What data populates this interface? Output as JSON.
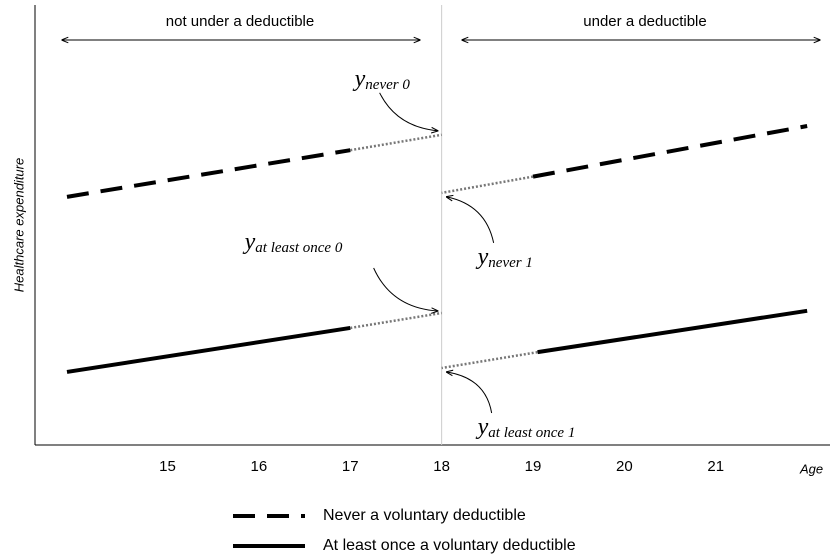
{
  "chart_data": {
    "type": "line",
    "xlabel": "Age",
    "ylabel": "Healthcare expenditure",
    "xlim": [
      13.55,
      22.25
    ],
    "ylim": [
      0,
      100
    ],
    "xticks": [
      15,
      16,
      17,
      18,
      19,
      20,
      21
    ],
    "divider_x": 18,
    "regions": [
      "not under a deductible",
      "under a deductible"
    ],
    "series": [
      {
        "name": "Never a voluntary deductible",
        "color": "#000000",
        "style": "dashed",
        "x": [
          13.9,
          17,
          18,
          19,
          22
        ],
        "values": [
          56.4,
          67,
          null,
          61,
          72.5
        ]
      },
      {
        "name": "At least once a voluntary deductible",
        "color": "#000000",
        "style": "solid",
        "x": [
          13.9,
          17,
          18,
          19.05,
          22
        ],
        "values": [
          16.6,
          26.6,
          null,
          21.1,
          30.5
        ]
      }
    ],
    "annotations": [
      {
        "text": "y",
        "subscript": "never 0",
        "x": 18,
        "y": 70.5
      },
      {
        "text": "y",
        "subscript": "never 1",
        "x": 18,
        "y": 57.3
      },
      {
        "text": "y",
        "subscript": "at least once 0",
        "x": 18,
        "y": 30
      },
      {
        "text": "y",
        "subscript": "at least once 1",
        "x": 18,
        "y": 17.5
      }
    ]
  }
}
